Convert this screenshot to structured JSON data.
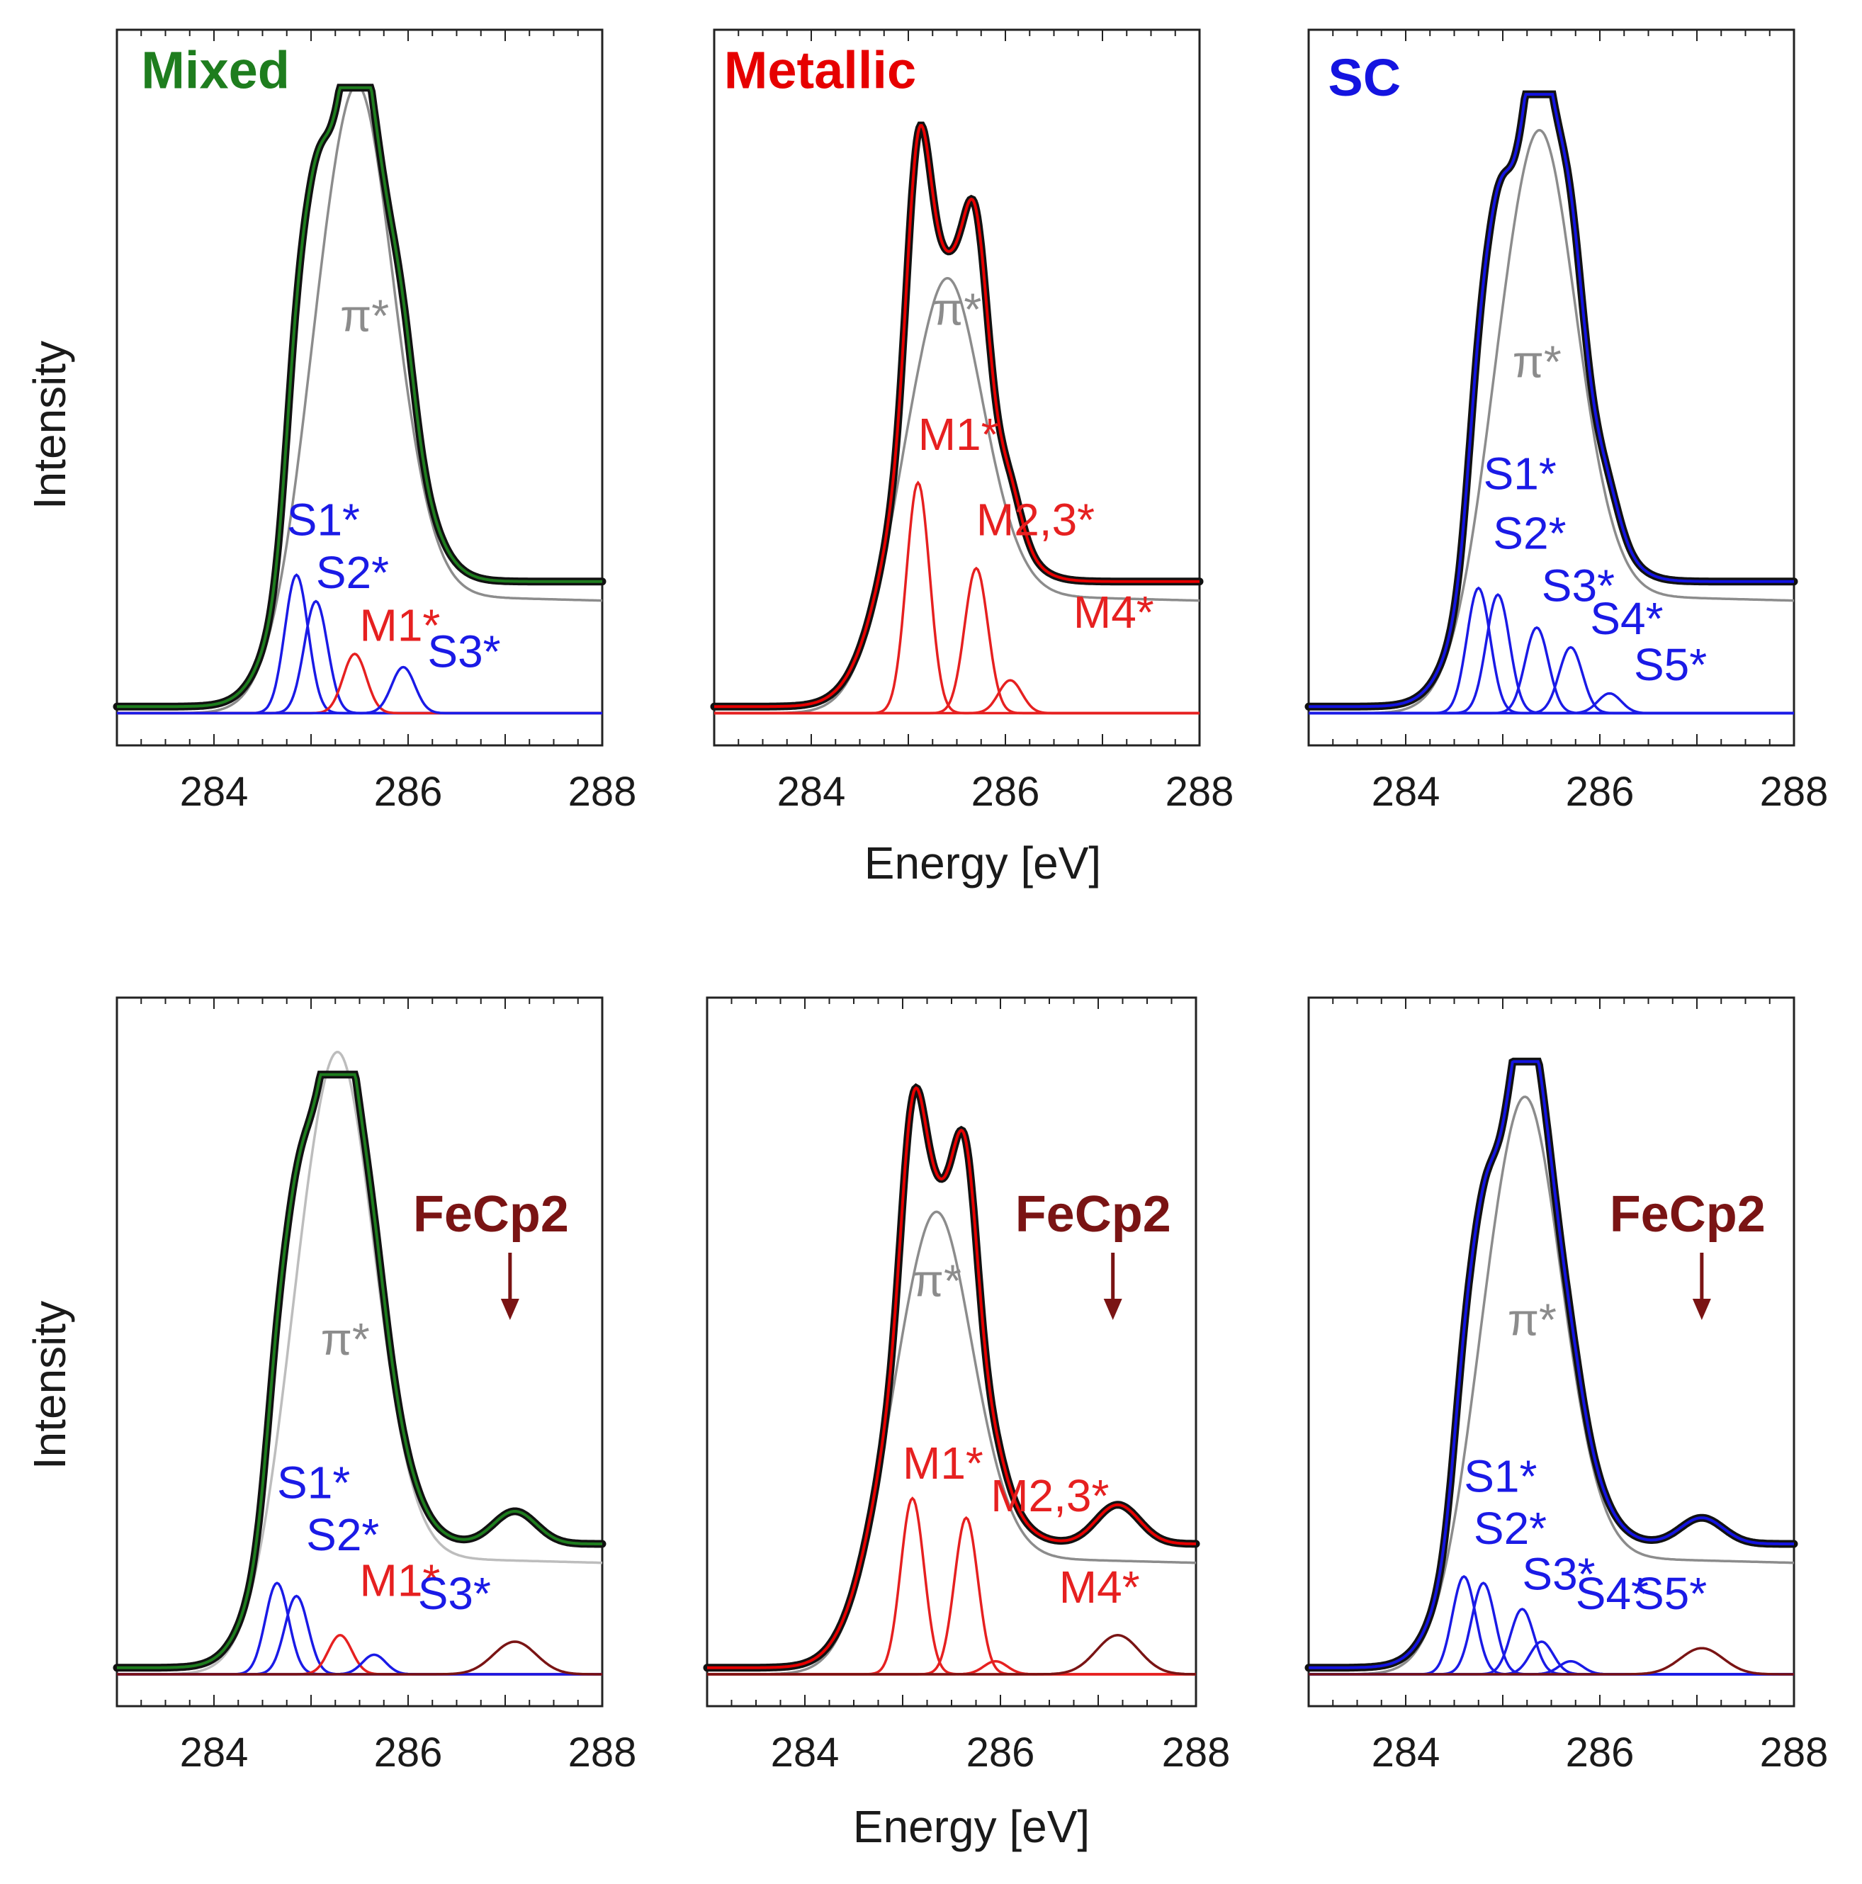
{
  "figure": {
    "ylabel": "Intensity",
    "xlabel": "Energy [eV]",
    "colors": {
      "mixed": "#1e7d1e",
      "metallic": "#e60000",
      "sc": "#1414e0",
      "semiconducting_component": "#1a1ae6",
      "metallic_component": "#e62020",
      "pi_component": "#8c8c8c",
      "fecp2": "#7a1414",
      "data_points": "#111111"
    }
  },
  "chart_data": [
    {
      "id": "top-mixed",
      "type": "line",
      "title": "Mixed",
      "title_color": "#1e7d1e",
      "xlabel": "",
      "ylabel": "Intensity",
      "xlim": [
        283,
        288
      ],
      "ylim": [
        0,
        1.0
      ],
      "xticks": [
        "284",
        "286",
        "288"
      ],
      "series": [
        {
          "name": "measured",
          "color": "#1e7d1e",
          "kind": "data",
          "peak_x": 285.45,
          "peak_y": 0.95
        },
        {
          "name": "π*",
          "color": "#8c8c8c",
          "center": 285.4,
          "height": 0.85
        },
        {
          "name": "S1*",
          "color": "#1a1ae6",
          "center": 284.85,
          "height": 0.21
        },
        {
          "name": "S2*",
          "color": "#1a1ae6",
          "center": 285.05,
          "height": 0.17
        },
        {
          "name": "M1*",
          "color": "#e62020",
          "center": 285.45,
          "height": 0.09
        },
        {
          "name": "S3*",
          "color": "#1a1ae6",
          "center": 285.95,
          "height": 0.07
        }
      ],
      "labels": [
        "π*",
        "S1*",
        "S2*",
        "M1*",
        "S3*"
      ]
    },
    {
      "id": "top-metallic",
      "type": "line",
      "title": "Metallic",
      "title_color": "#e60000",
      "xlabel": "Energy [eV]",
      "ylabel": "",
      "xlim": [
        283,
        288
      ],
      "ylim": [
        0,
        1.0
      ],
      "xticks": [
        "284",
        "286",
        "288"
      ],
      "series": [
        {
          "name": "measured",
          "color": "#e60000",
          "kind": "data",
          "peak_x": 285.15,
          "peak_y": 0.98
        },
        {
          "name": "π*",
          "color": "#8c8c8c",
          "center": 285.3,
          "height": 0.55
        },
        {
          "name": "M1*",
          "color": "#e62020",
          "center": 285.1,
          "height": 0.35
        },
        {
          "name": "M2,3*",
          "color": "#e62020",
          "center": 285.7,
          "height": 0.22
        },
        {
          "name": "M4*",
          "color": "#e62020",
          "center": 286.05,
          "height": 0.05
        }
      ],
      "labels": [
        "π*",
        "M1*",
        "M2,3*",
        "M4*"
      ]
    },
    {
      "id": "top-sc",
      "type": "line",
      "title": "SC",
      "title_color": "#1414e0",
      "xlabel": "",
      "ylabel": "",
      "xlim": [
        283,
        288
      ],
      "ylim": [
        0,
        1.0
      ],
      "xticks": [
        "284",
        "286",
        "288"
      ],
      "series": [
        {
          "name": "measured",
          "color": "#1414e0",
          "kind": "data",
          "peak_x": 285.35,
          "peak_y": 0.94
        },
        {
          "name": "π*",
          "color": "#8c8c8c",
          "center": 285.3,
          "height": 0.78
        },
        {
          "name": "S1*",
          "color": "#1a1ae6",
          "center": 284.75,
          "height": 0.19
        },
        {
          "name": "S2*",
          "color": "#1a1ae6",
          "center": 284.95,
          "height": 0.18
        },
        {
          "name": "S3*",
          "color": "#1a1ae6",
          "center": 285.35,
          "height": 0.13
        },
        {
          "name": "S4*",
          "color": "#1a1ae6",
          "center": 285.7,
          "height": 0.1
        },
        {
          "name": "S5*",
          "color": "#1a1ae6",
          "center": 286.1,
          "height": 0.03
        }
      ],
      "labels": [
        "π*",
        "S1*",
        "S2*",
        "S3*",
        "S4*",
        "S5*"
      ]
    },
    {
      "id": "bottom-mixed",
      "type": "line",
      "title": "",
      "title_color": "#1e7d1e",
      "xlabel": "",
      "ylabel": "Intensity",
      "xlim": [
        283,
        288
      ],
      "ylim": [
        0,
        1.0
      ],
      "xticks": [
        "284",
        "286",
        "288"
      ],
      "series": [
        {
          "name": "measured",
          "color": "#1e7d1e",
          "kind": "data",
          "peak_x": 285.25,
          "peak_y": 0.92
        },
        {
          "name": "π*",
          "color": "#bdbdbd",
          "center": 285.2,
          "height": 0.85
        },
        {
          "name": "S1*",
          "color": "#1a1ae6",
          "center": 284.65,
          "height": 0.14
        },
        {
          "name": "S2*",
          "color": "#1a1ae6",
          "center": 284.85,
          "height": 0.12
        },
        {
          "name": "M1*",
          "color": "#e62020",
          "center": 285.3,
          "height": 0.06
        },
        {
          "name": "S3*",
          "color": "#1a1ae6",
          "center": 285.65,
          "height": 0.03
        },
        {
          "name": "FeCp2",
          "color": "#7a1414",
          "center": 287.1,
          "height": 0.05
        }
      ],
      "labels": [
        "π*",
        "S1*",
        "S2*",
        "M1*",
        "S3*",
        "FeCp2"
      ],
      "annotation": {
        "text": "FeCp2",
        "x": 287.05
      }
    },
    {
      "id": "bottom-metallic",
      "type": "line",
      "title": "",
      "title_color": "#e60000",
      "xlabel": "Energy [eV]",
      "ylabel": "",
      "xlim": [
        283,
        288
      ],
      "ylim": [
        0,
        1.0
      ],
      "xticks": [
        "284",
        "286",
        "288"
      ],
      "series": [
        {
          "name": "measured",
          "color": "#e60000",
          "kind": "data",
          "peak_x": 285.1,
          "peak_y": 0.96
        },
        {
          "name": "π*",
          "color": "#8c8c8c",
          "center": 285.25,
          "height": 0.6
        },
        {
          "name": "M1*",
          "color": "#e62020",
          "center": 285.1,
          "height": 0.27
        },
        {
          "name": "M2,3*",
          "color": "#e62020",
          "center": 285.65,
          "height": 0.24
        },
        {
          "name": "M4*",
          "color": "#e62020",
          "center": 285.95,
          "height": 0.02
        },
        {
          "name": "FeCp2",
          "color": "#7a1414",
          "center": 287.2,
          "height": 0.06
        }
      ],
      "labels": [
        "π*",
        "M1*",
        "M2,3*",
        "M4*",
        "FeCp2"
      ],
      "annotation": {
        "text": "FeCp2",
        "x": 287.15
      }
    },
    {
      "id": "bottom-sc",
      "type": "line",
      "title": "",
      "title_color": "#1414e0",
      "xlabel": "",
      "ylabel": "",
      "xlim": [
        283,
        288
      ],
      "ylim": [
        0,
        1.0
      ],
      "xticks": [
        "284",
        "286",
        "288"
      ],
      "series": [
        {
          "name": "measured",
          "color": "#1414e0",
          "kind": "data",
          "peak_x": 285.2,
          "peak_y": 0.94
        },
        {
          "name": "π*",
          "color": "#8c8c8c",
          "center": 285.15,
          "height": 0.78
        },
        {
          "name": "S1*",
          "color": "#1a1ae6",
          "center": 284.6,
          "height": 0.15
        },
        {
          "name": "S2*",
          "color": "#1a1ae6",
          "center": 284.8,
          "height": 0.14
        },
        {
          "name": "S3*",
          "color": "#1a1ae6",
          "center": 285.2,
          "height": 0.1
        },
        {
          "name": "S4*",
          "color": "#1a1ae6",
          "center": 285.4,
          "height": 0.05
        },
        {
          "name": "S5*",
          "color": "#1a1ae6",
          "center": 285.7,
          "height": 0.02
        },
        {
          "name": "FeCp2",
          "color": "#7a1414",
          "center": 287.05,
          "height": 0.04
        }
      ],
      "labels": [
        "π*",
        "S1*",
        "S2*",
        "S3*",
        "S4*",
        "S5*",
        "FeCp2"
      ],
      "annotation": {
        "text": "FeCp2",
        "x": 287.05
      }
    }
  ]
}
